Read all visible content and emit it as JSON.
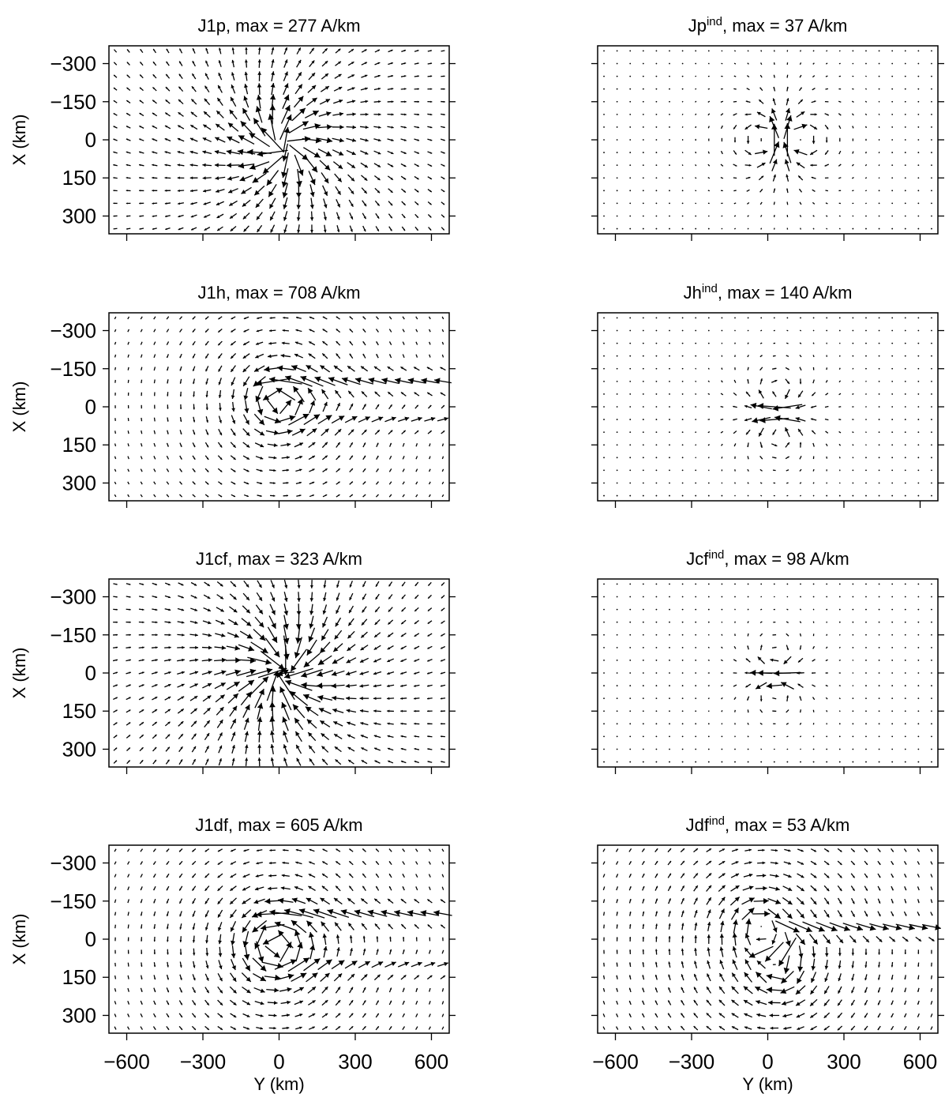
{
  "figure": {
    "panels": [
      {
        "title_main": "J1p, max = 277 A/km",
        "title_sup": "",
        "title_rest": ""
      },
      {
        "title_main": "Jp",
        "title_sup": "ind",
        "title_rest": ", max = 37 A/km"
      },
      {
        "title_main": "J1h, max = 708 A/km",
        "title_sup": "",
        "title_rest": ""
      },
      {
        "title_main": "Jh",
        "title_sup": "ind",
        "title_rest": ", max = 140 A/km"
      },
      {
        "title_main": "J1cf, max = 323 A/km",
        "title_sup": "",
        "title_rest": ""
      },
      {
        "title_main": "Jcf",
        "title_sup": "ind",
        "title_rest": ", max = 98 A/km"
      },
      {
        "title_main": "J1df, max = 605 A/km",
        "title_sup": "",
        "title_rest": ""
      },
      {
        "title_main": "Jdf",
        "title_sup": "ind",
        "title_rest": ", max = 53 A/km"
      }
    ],
    "y_axis_label": "X (km)",
    "x_axis_label": "Y (km)",
    "y_tick_labels": [
      "300",
      "150",
      "0",
      "−150",
      "−300"
    ],
    "x_tick_labels": [
      "−600",
      "−300",
      "0",
      "300",
      "600"
    ]
  },
  "chart_data": [
    {
      "type": "quiver",
      "title": "J1p, max = 277 A/km",
      "max_A_per_km": 277,
      "xlabel": "",
      "ylabel": "X (km)",
      "xlim": [
        -670,
        670
      ],
      "ylim": [
        -370,
        370
      ],
      "xticks": [
        -600,
        -300,
        0,
        300,
        600
      ],
      "yticks": [
        -300,
        -150,
        0,
        150,
        300
      ],
      "field": "source",
      "vortices": [
        {
          "x": 30,
          "y": 0,
          "strength": -0.35
        }
      ],
      "sources": [
        {
          "x": 20,
          "y": -30,
          "strength": 1.0
        }
      ],
      "jets": []
    },
    {
      "type": "quiver",
      "title": "Jp^ind, max = 37 A/km",
      "max_A_per_km": 37,
      "xlabel": "",
      "ylabel": "",
      "xlim": [
        -670,
        670
      ],
      "ylim": [
        -370,
        370
      ],
      "xticks": [
        -600,
        -300,
        0,
        300,
        600
      ],
      "yticks": [
        -300,
        -150,
        0,
        150,
        300
      ],
      "field": "induced",
      "vortices": [
        {
          "x": 0,
          "y": 0,
          "strength": 0.6
        },
        {
          "x": 110,
          "y": 0,
          "strength": -0.6
        }
      ],
      "sources": [],
      "jets": [
        {
          "x0": 55,
          "x1": 60,
          "y": -40,
          "halfwidth": 50,
          "direction": [
            0,
            -1
          ],
          "strength": 1.0
        }
      ]
    },
    {
      "type": "quiver",
      "title": "J1h, max = 708 A/km",
      "max_A_per_km": 708,
      "xlabel": "",
      "ylabel": "X (km)",
      "xlim": [
        -670,
        670
      ],
      "ylim": [
        -370,
        370
      ],
      "xticks": [
        -600,
        -300,
        0,
        300,
        600
      ],
      "yticks": [
        -300,
        -150,
        0,
        150,
        300
      ],
      "field": "hall",
      "vortices": [
        {
          "x": 0,
          "y": 20,
          "strength": 0.6
        }
      ],
      "sources": [],
      "jets": [
        {
          "x0": -60,
          "x1": 660,
          "y": 100,
          "halfwidth": 45,
          "direction": [
            -1,
            0
          ],
          "strength": 0.8
        },
        {
          "x0": 40,
          "x1": 660,
          "y": -50,
          "halfwidth": 45,
          "direction": [
            1,
            0
          ],
          "strength": 0.5
        }
      ]
    },
    {
      "type": "quiver",
      "title": "Jh^ind, max = 140 A/km",
      "max_A_per_km": 140,
      "xlabel": "",
      "ylabel": "",
      "xlim": [
        -670,
        670
      ],
      "ylim": [
        -370,
        370
      ],
      "xticks": [
        -600,
        -300,
        0,
        300,
        600
      ],
      "yticks": [
        -300,
        -150,
        0,
        150,
        300
      ],
      "field": "induced",
      "vortices": [
        {
          "x": 40,
          "y": 40,
          "strength": -0.5
        },
        {
          "x": 40,
          "y": -90,
          "strength": 0.5
        }
      ],
      "sources": [],
      "jets": [
        {
          "x0": -20,
          "x1": 100,
          "y": -20,
          "halfwidth": 35,
          "direction": [
            -1,
            0
          ],
          "strength": 1.0
        }
      ]
    },
    {
      "type": "quiver",
      "title": "J1cf, max = 323 A/km",
      "max_A_per_km": 323,
      "xlabel": "",
      "ylabel": "X (km)",
      "xlim": [
        -670,
        670
      ],
      "ylim": [
        -370,
        370
      ],
      "xticks": [
        -600,
        -300,
        0,
        300,
        600
      ],
      "yticks": [
        -300,
        -150,
        0,
        150,
        300
      ],
      "field": "source",
      "vortices": [
        {
          "x": 20,
          "y": 0,
          "strength": -0.3
        }
      ],
      "sources": [
        {
          "x": 10,
          "y": 0,
          "strength": -1.0
        }
      ],
      "jets": []
    },
    {
      "type": "quiver",
      "title": "Jcf^ind, max = 98 A/km",
      "max_A_per_km": 98,
      "xlabel": "",
      "ylabel": "",
      "xlim": [
        -670,
        670
      ],
      "ylim": [
        -370,
        370
      ],
      "xticks": [
        -600,
        -300,
        0,
        300,
        600
      ],
      "yticks": [
        -300,
        -150,
        0,
        150,
        300
      ],
      "field": "induced",
      "vortices": [
        {
          "x": 30,
          "y": 50,
          "strength": -0.5
        },
        {
          "x": 30,
          "y": -60,
          "strength": 0.5
        }
      ],
      "sources": [],
      "jets": [
        {
          "x0": -20,
          "x1": 80,
          "y": -10,
          "halfwidth": 35,
          "direction": [
            -1,
            0
          ],
          "strength": 1.0
        }
      ]
    },
    {
      "type": "quiver",
      "title": "J1df, max = 605 A/km",
      "max_A_per_km": 605,
      "xlabel": "Y (km)",
      "ylabel": "X (km)",
      "xlim": [
        -670,
        670
      ],
      "ylim": [
        -370,
        370
      ],
      "xticks": [
        -600,
        -300,
        0,
        300,
        600
      ],
      "yticks": [
        -300,
        -150,
        0,
        150,
        300
      ],
      "field": "hall",
      "vortices": [
        {
          "x": -10,
          "y": -30,
          "strength": 0.7
        }
      ],
      "sources": [],
      "jets": [
        {
          "x0": -60,
          "x1": 660,
          "y": 100,
          "halfwidth": 40,
          "direction": [
            -1,
            0
          ],
          "strength": 0.8
        },
        {
          "x0": 40,
          "x1": 660,
          "y": -110,
          "halfwidth": 40,
          "direction": [
            1,
            0
          ],
          "strength": 0.5
        }
      ]
    },
    {
      "type": "quiver",
      "title": "Jdf^ind, max = 53 A/km",
      "max_A_per_km": 53,
      "xlabel": "Y (km)",
      "ylabel": "",
      "xlim": [
        -670,
        670
      ],
      "ylim": [
        -370,
        370
      ],
      "xticks": [
        -600,
        -300,
        0,
        300,
        600
      ],
      "yticks": [
        -300,
        -150,
        0,
        150,
        300
      ],
      "field": "induced",
      "vortices": [
        {
          "x": -30,
          "y": 60,
          "strength": -0.3
        },
        {
          "x": 40,
          "y": -120,
          "strength": -0.3
        }
      ],
      "sources": [],
      "jets": [
        {
          "x0": 60,
          "x1": 660,
          "y": 40,
          "halfwidth": 35,
          "direction": [
            1,
            0
          ],
          "strength": 0.7
        },
        {
          "x0": -60,
          "x1": 80,
          "y": -50,
          "halfwidth": 40,
          "direction": [
            -1,
            -0.8
          ],
          "strength": 1.0
        }
      ]
    }
  ]
}
